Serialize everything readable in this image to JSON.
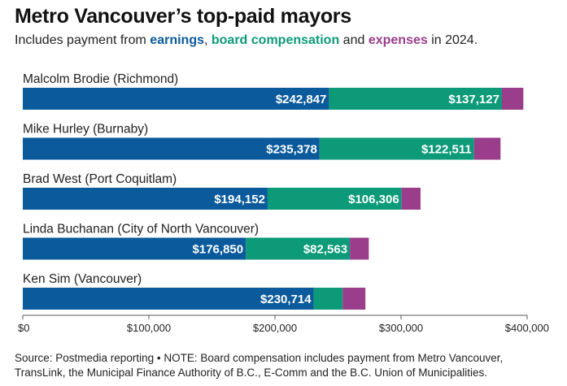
{
  "title": "Metro Vancouver’s top-paid mayors",
  "subtitle": {
    "prefix": "Includes payment from ",
    "earnings": "earnings",
    "sep1": ", ",
    "board": "board compensation",
    "sep2": " and ",
    "expenses": "expenses",
    "suffix": " in 2024."
  },
  "source": "Source: Postmedia reporting • NOTE: Board compensation includes payment from Metro Vancouver, TransLink, the Municipal Finance Authority of B.C., E-Comm and the B.C. Union of Municipalities.",
  "colors": {
    "earnings": "#0a5a9c",
    "board": "#0c9a78",
    "expenses": "#9a3d8a"
  },
  "chart_data": {
    "type": "bar",
    "orientation": "horizontal",
    "stacked": true,
    "categories": [
      "Malcolm Brodie (Richmond)",
      "Mike Hurley (Burnaby)",
      "Brad West (Port Coquitlam)",
      "Linda Buchanan (City of North Vancouver)",
      "Ken Sim (Vancouver)"
    ],
    "series": [
      {
        "name": "earnings",
        "values": [
          242847,
          235378,
          194152,
          176850,
          230714
        ],
        "labels": [
          "$242,847",
          "$235,378",
          "$194,152",
          "$176,850",
          "$230,714"
        ]
      },
      {
        "name": "board compensation",
        "values": [
          137127,
          122511,
          106306,
          82563,
          23000
        ],
        "labels": [
          "$137,127",
          "$122,511",
          "$106,306",
          "$82,563",
          ""
        ]
      },
      {
        "name": "expenses",
        "values": [
          17000,
          21000,
          15000,
          15000,
          18000
        ],
        "labels": [
          "",
          "",
          "",
          "",
          ""
        ]
      }
    ],
    "xlim": [
      0,
      400000
    ],
    "xticks": [
      0,
      100000,
      200000,
      300000,
      400000
    ],
    "xtick_labels": [
      "$0",
      "$100,000",
      "$200,000",
      "$300,000",
      "$400,000"
    ],
    "grid": false
  }
}
